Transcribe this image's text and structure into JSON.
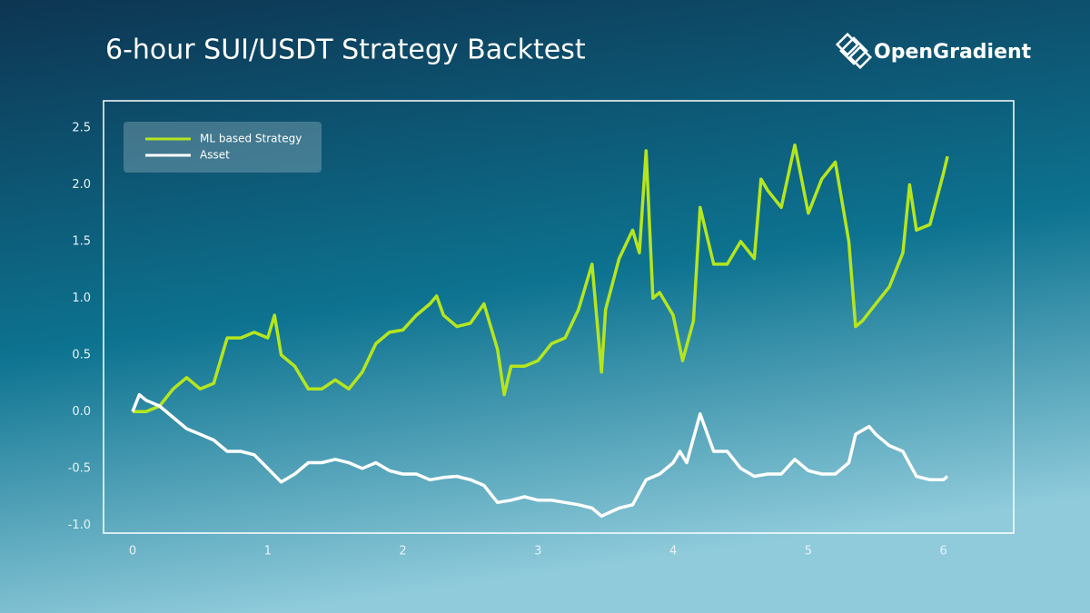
{
  "brand": "OpenGradient",
  "chart_data": {
    "type": "line",
    "title": "6-hour SUI/USDT Strategy Backtest",
    "xlim": [
      -0.215,
      6.52
    ],
    "ylim": [
      -1.07,
      2.74
    ],
    "xticks": [
      0,
      1,
      2,
      3,
      4,
      5,
      6
    ],
    "yticks": [
      {
        "value": -1,
        "label": "-1.0"
      },
      -0.5,
      {
        "value": 0,
        "label": "0.0"
      },
      0.5,
      {
        "value": 1,
        "label": "1.0"
      },
      1.5,
      {
        "value": 2,
        "label": "2.0"
      },
      2.5
    ],
    "legend": "upper left",
    "series": [
      {
        "name": "ML based Strategy",
        "color": "#b5e61d",
        "x": [
          0,
          0.1,
          0.2,
          0.3,
          0.4,
          0.5,
          0.6,
          0.7,
          0.8,
          0.9,
          1.0,
          1.05,
          1.1,
          1.2,
          1.3,
          1.4,
          1.5,
          1.6,
          1.7,
          1.8,
          1.9,
          2.0,
          2.1,
          2.2,
          2.25,
          2.3,
          2.4,
          2.5,
          2.6,
          2.7,
          2.75,
          2.8,
          2.9,
          3.0,
          3.1,
          3.2,
          3.3,
          3.4,
          3.47,
          3.5,
          3.6,
          3.7,
          3.75,
          3.8,
          3.85,
          3.9,
          4.0,
          4.07,
          4.15,
          4.2,
          4.3,
          4.4,
          4.5,
          4.6,
          4.65,
          4.7,
          4.8,
          4.9,
          5.0,
          5.1,
          5.2,
          5.3,
          5.35,
          5.4,
          5.5,
          5.6,
          5.7,
          5.75,
          5.8,
          5.9,
          6.0,
          6.03
        ],
        "values": [
          0.0,
          0.0,
          0.05,
          0.2,
          0.3,
          0.2,
          0.25,
          0.65,
          0.65,
          0.7,
          0.65,
          0.85,
          0.5,
          0.4,
          0.2,
          0.2,
          0.28,
          0.2,
          0.35,
          0.6,
          0.7,
          0.72,
          0.85,
          0.95,
          1.02,
          0.85,
          0.75,
          0.78,
          0.95,
          0.55,
          0.15,
          0.4,
          0.4,
          0.45,
          0.6,
          0.65,
          0.9,
          1.3,
          0.35,
          0.9,
          1.35,
          1.6,
          1.4,
          2.3,
          1.0,
          1.05,
          0.85,
          0.45,
          0.8,
          1.8,
          1.3,
          1.3,
          1.5,
          1.35,
          2.05,
          1.95,
          1.8,
          2.35,
          1.75,
          2.05,
          2.2,
          1.5,
          0.75,
          0.8,
          0.95,
          1.1,
          1.4,
          2.0,
          1.6,
          1.65,
          2.1,
          2.25
        ]
      },
      {
        "name": "Asset",
        "color": "#ffffff",
        "x": [
          0,
          0.05,
          0.1,
          0.2,
          0.3,
          0.4,
          0.5,
          0.6,
          0.7,
          0.8,
          0.9,
          1.0,
          1.1,
          1.2,
          1.3,
          1.4,
          1.5,
          1.6,
          1.7,
          1.8,
          1.9,
          2.0,
          2.1,
          2.2,
          2.3,
          2.4,
          2.5,
          2.6,
          2.7,
          2.8,
          2.9,
          3.0,
          3.1,
          3.2,
          3.3,
          3.4,
          3.47,
          3.6,
          3.7,
          3.8,
          3.9,
          4.0,
          4.05,
          4.1,
          4.2,
          4.3,
          4.4,
          4.5,
          4.6,
          4.7,
          4.8,
          4.9,
          5.0,
          5.1,
          5.2,
          5.3,
          5.35,
          5.45,
          5.5,
          5.6,
          5.7,
          5.8,
          5.9,
          6.0,
          6.03
        ],
        "values": [
          0.0,
          0.15,
          0.1,
          0.05,
          -0.05,
          -0.15,
          -0.2,
          -0.25,
          -0.35,
          -0.35,
          -0.38,
          -0.5,
          -0.62,
          -0.55,
          -0.45,
          -0.45,
          -0.42,
          -0.45,
          -0.5,
          -0.45,
          -0.52,
          -0.55,
          -0.55,
          -0.6,
          -0.58,
          -0.57,
          -0.6,
          -0.65,
          -0.8,
          -0.78,
          -0.75,
          -0.78,
          -0.78,
          -0.8,
          -0.82,
          -0.85,
          -0.92,
          -0.85,
          -0.82,
          -0.6,
          -0.55,
          -0.45,
          -0.35,
          -0.45,
          -0.02,
          -0.35,
          -0.35,
          -0.5,
          -0.57,
          -0.55,
          -0.55,
          -0.42,
          -0.52,
          -0.55,
          -0.55,
          -0.45,
          -0.2,
          -0.13,
          -0.2,
          -0.3,
          -0.35,
          -0.57,
          -0.6,
          -0.6,
          -0.57
        ]
      }
    ]
  }
}
